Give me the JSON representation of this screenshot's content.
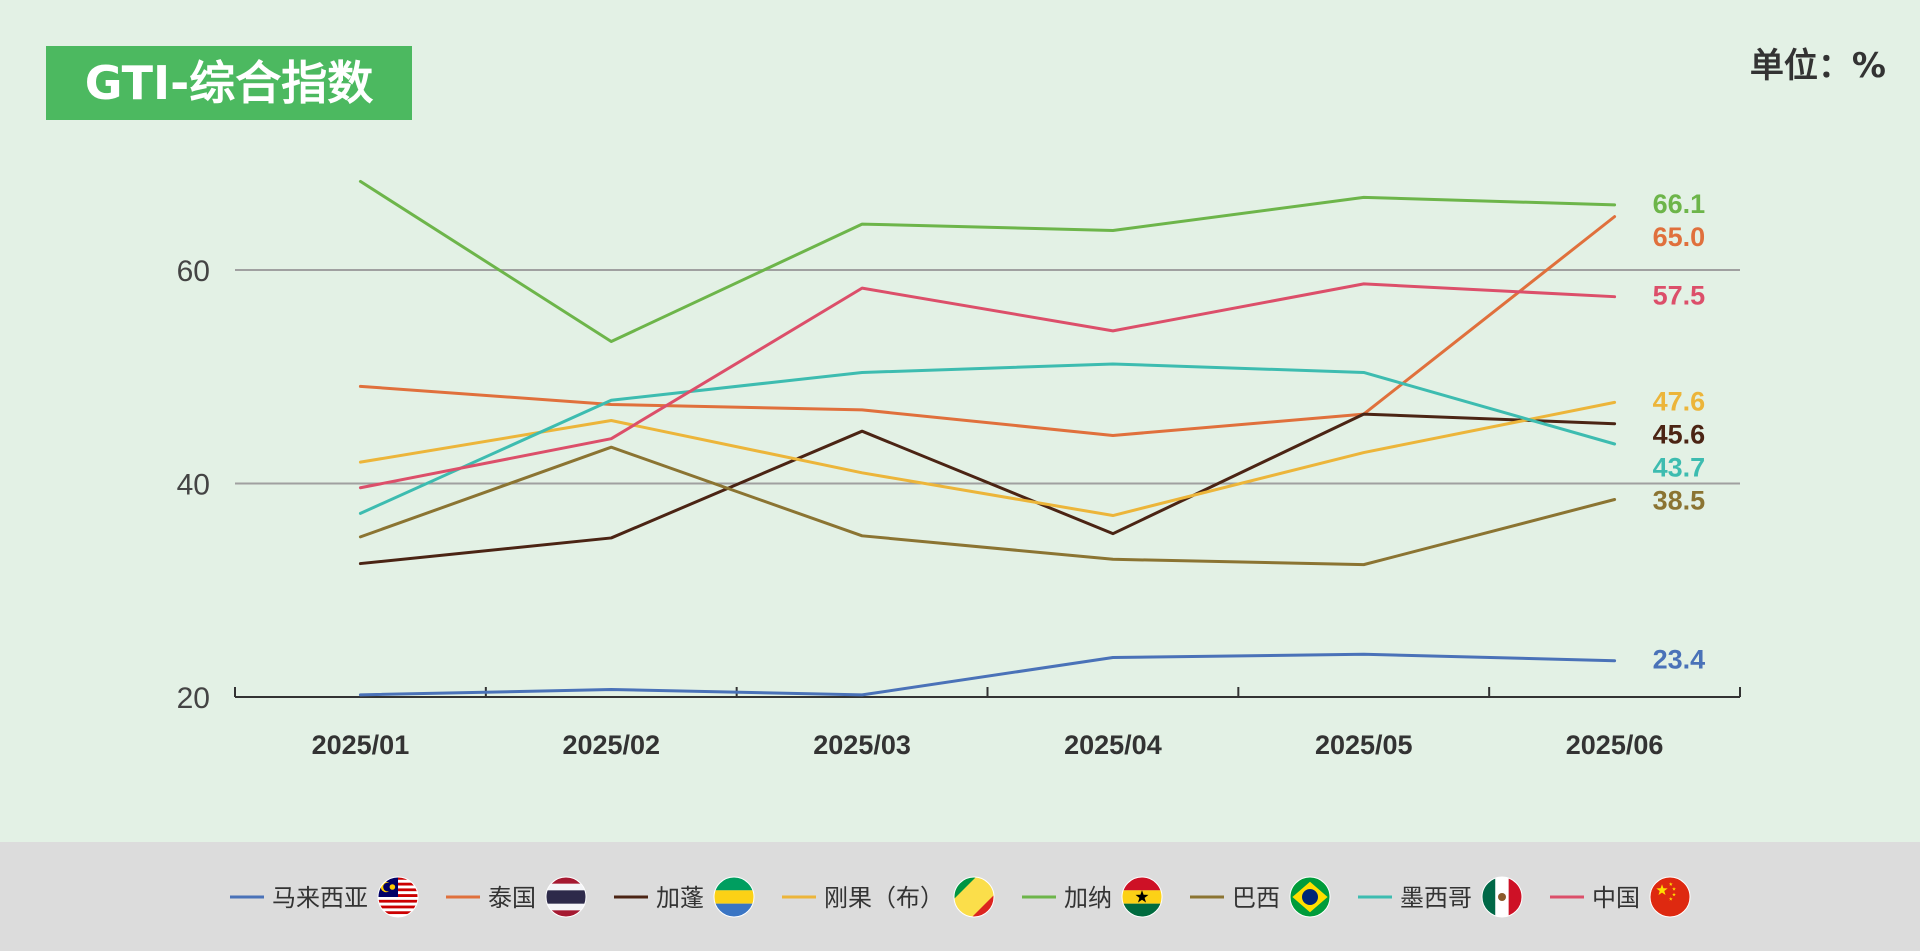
{
  "title": "GTI-综合指数",
  "unit": "单位：%",
  "colors": {
    "panel_bg": "#e3f1e5",
    "legend_bg": "#dcdcdc",
    "title_bg": "#4cb960",
    "gridline": "#a0a0a0",
    "axis": "#333333"
  },
  "chart_data": {
    "type": "line",
    "categories": [
      "2025/01",
      "2025/02",
      "2025/03",
      "2025/04",
      "2025/05",
      "2025/06"
    ],
    "ylim": [
      20,
      70
    ],
    "yticks": [
      20,
      40,
      60
    ],
    "grid": true,
    "legend_position": "bottom",
    "series": [
      {
        "name": "马来西亚",
        "color": "#4a72b8",
        "flag": "malaysia-flag-icon",
        "values": [
          20.2,
          20.7,
          20.2,
          23.7,
          24.0,
          23.4
        ],
        "end_label": "23.4"
      },
      {
        "name": "泰国",
        "color": "#e0703c",
        "flag": "thailand-flag-icon",
        "values": [
          49.1,
          47.4,
          46.9,
          44.5,
          46.5,
          65.0
        ],
        "end_label": "65.0"
      },
      {
        "name": "加蓬",
        "color": "#4b2414",
        "flag": "gabon-flag-icon",
        "values": [
          32.5,
          34.9,
          44.9,
          35.3,
          46.5,
          45.6
        ],
        "end_label": "45.6"
      },
      {
        "name": "刚果（布）",
        "color": "#ecb53a",
        "flag": "congo-flag-icon",
        "values": [
          42.0,
          45.9,
          41.0,
          37.0,
          42.9,
          47.6
        ],
        "end_label": "47.6"
      },
      {
        "name": "加纳",
        "color": "#6db54a",
        "flag": "ghana-flag-icon",
        "values": [
          68.3,
          53.3,
          64.3,
          63.7,
          66.8,
          66.1
        ],
        "end_label": "66.1"
      },
      {
        "name": "巴西",
        "color": "#8b7432",
        "flag": "brazil-flag-icon",
        "values": [
          35.0,
          43.4,
          35.1,
          32.9,
          32.4,
          38.5
        ],
        "end_label": "38.5"
      },
      {
        "name": "墨西哥",
        "color": "#3dbcb0",
        "flag": "mexico-flag-icon",
        "values": [
          37.2,
          47.8,
          50.4,
          51.2,
          50.4,
          43.7
        ],
        "end_label": "43.7"
      },
      {
        "name": "中国",
        "color": "#dc4f6a",
        "flag": "china-flag-icon",
        "values": [
          39.6,
          44.2,
          58.3,
          54.3,
          58.7,
          57.5
        ],
        "end_label": "57.5"
      }
    ]
  }
}
